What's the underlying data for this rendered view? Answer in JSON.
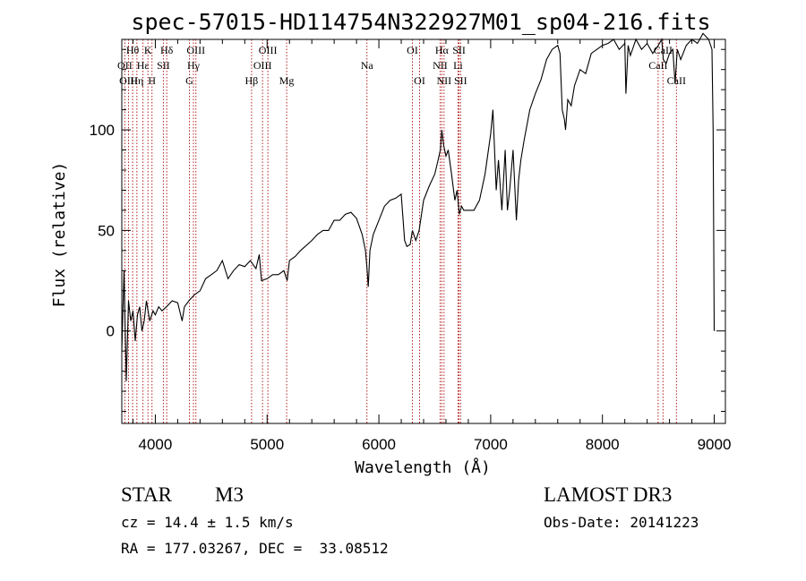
{
  "chart_data": {
    "type": "line",
    "title": "spec-57015-HD114754N322927M01_sp04-216.fits",
    "xlabel": "Wavelength (Å)",
    "ylabel": "Flux (relative)",
    "xlim": [
      3700,
      9100
    ],
    "ylim": [
      -46,
      145
    ],
    "xticks": [
      4000,
      5000,
      6000,
      7000,
      8000,
      9000
    ],
    "yticks": [
      0,
      50,
      100
    ],
    "grid": false,
    "series": [
      {
        "name": "spectrum",
        "x": [
          3700,
          3720,
          3740,
          3760,
          3780,
          3800,
          3820,
          3840,
          3860,
          3880,
          3900,
          3920,
          3950,
          3980,
          4000,
          4030,
          4060,
          4100,
          4150,
          4200,
          4240,
          4260,
          4300,
          4350,
          4400,
          4450,
          4500,
          4550,
          4600,
          4650,
          4700,
          4750,
          4800,
          4850,
          4900,
          4930,
          4950,
          5000,
          5050,
          5100,
          5150,
          5180,
          5200,
          5250,
          5300,
          5400,
          5450,
          5500,
          5550,
          5600,
          5650,
          5700,
          5750,
          5800,
          5850,
          5880,
          5895,
          5905,
          5920,
          5950,
          6000,
          6050,
          6100,
          6150,
          6200,
          6230,
          6250,
          6280,
          6300,
          6330,
          6360,
          6400,
          6450,
          6500,
          6530,
          6550,
          6563,
          6580,
          6600,
          6620,
          6650,
          6680,
          6700,
          6720,
          6740,
          6760,
          6800,
          6850,
          6900,
          6950,
          7000,
          7020,
          7050,
          7070,
          7100,
          7130,
          7150,
          7170,
          7200,
          7230,
          7250,
          7270,
          7300,
          7350,
          7400,
          7450,
          7500,
          7550,
          7600,
          7620,
          7640,
          7660,
          7670,
          7690,
          7720,
          7750,
          7800,
          7850,
          7900,
          7950,
          8000,
          8050,
          8100,
          8150,
          8200,
          8210,
          8230,
          8250,
          8300,
          8350,
          8400,
          8450,
          8500,
          8530,
          8545,
          8570,
          8600,
          8630,
          8650,
          8670,
          8700,
          8750,
          8800,
          8850,
          8900,
          8950,
          8980,
          8990,
          9000
        ],
        "values": [
          -10,
          30,
          -25,
          15,
          5,
          10,
          -5,
          8,
          12,
          0,
          5,
          15,
          5,
          10,
          8,
          12,
          10,
          12,
          15,
          14,
          5,
          12,
          15,
          18,
          20,
          26,
          28,
          30,
          35,
          26,
          30,
          33,
          32,
          35,
          31,
          38,
          25,
          26,
          28,
          28,
          30,
          25,
          35,
          37,
          40,
          45,
          48,
          50,
          50,
          55,
          55,
          58,
          59,
          56,
          48,
          40,
          30,
          22,
          40,
          48,
          55,
          62,
          65,
          66,
          68,
          45,
          42,
          43,
          50,
          45,
          50,
          65,
          72,
          78,
          85,
          90,
          100,
          92,
          87,
          90,
          78,
          65,
          70,
          58,
          62,
          60,
          60,
          60,
          65,
          78,
          98,
          110,
          70,
          85,
          60,
          90,
          60,
          70,
          90,
          55,
          75,
          85,
          95,
          110,
          118,
          125,
          135,
          140,
          142,
          138,
          110,
          105,
          100,
          115,
          112,
          122,
          130,
          128,
          138,
          140,
          142,
          143,
          145,
          140,
          143,
          118,
          142,
          137,
          145,
          140,
          143,
          138,
          142,
          145,
          135,
          133,
          138,
          140,
          123,
          140,
          135,
          142,
          145,
          143,
          148,
          145,
          140,
          100,
          0
        ]
      }
    ],
    "spectral_lines": [
      {
        "label": "Hθ",
        "row": 1,
        "x": 3797
      },
      {
        "label": "OII",
        "row": 2,
        "x": 3727
      },
      {
        "label": "OIII",
        "row": 3,
        "x": 3760
      },
      {
        "label": "Hε",
        "row": 2,
        "x": 3889
      },
      {
        "label": "Hη",
        "row": 3,
        "x": 3835
      },
      {
        "label": "K",
        "row": 1,
        "x": 3934
      },
      {
        "label": "H",
        "row": 3,
        "x": 3970
      },
      {
        "label": "SII",
        "row": 2,
        "x": 4072
      },
      {
        "label": "Hδ",
        "row": 1,
        "x": 4102
      },
      {
        "label": "G",
        "row": 3,
        "x": 4305
      },
      {
        "label": "Hγ",
        "row": 2,
        "x": 4341
      },
      {
        "label": "OIII",
        "row": 1,
        "x": 4363
      },
      {
        "label": "Hβ",
        "row": 3,
        "x": 4861
      },
      {
        "label": "OIII",
        "row": 2,
        "x": 4959
      },
      {
        "label": "OIII",
        "row": 1,
        "x": 5007
      },
      {
        "label": "Mg",
        "row": 3,
        "x": 5175
      },
      {
        "label": "Na",
        "row": 2,
        "x": 5893
      },
      {
        "label": "OI",
        "row": 1,
        "x": 6300
      },
      {
        "label": "OI",
        "row": 3,
        "x": 6364
      },
      {
        "label": "NII",
        "row": 2,
        "x": 6548
      },
      {
        "label": "Hα",
        "row": 1,
        "x": 6563
      },
      {
        "label": "NII",
        "row": 3,
        "x": 6583
      },
      {
        "label": "Li",
        "row": 2,
        "x": 6708
      },
      {
        "label": "SII",
        "row": 1,
        "x": 6717
      },
      {
        "label": "SII",
        "row": 3,
        "x": 6731
      },
      {
        "label": "CaII",
        "row": 2,
        "x": 8498
      },
      {
        "label": "CaII",
        "row": 1,
        "x": 8542
      },
      {
        "label": "CaII",
        "row": 3,
        "x": 8662
      }
    ]
  },
  "info": {
    "object_type": "STAR",
    "subclass": "M3",
    "survey": "LAMOST DR3",
    "cz": "cz = 14.4 ± 1.5 km/s",
    "obs_date": "Obs-Date: 20141223",
    "coords": "RA = 177.03267, DEC =  33.08512"
  },
  "colors": {
    "line_marker": "#b22222",
    "spectrum": "#000000",
    "axes": "#000000"
  }
}
